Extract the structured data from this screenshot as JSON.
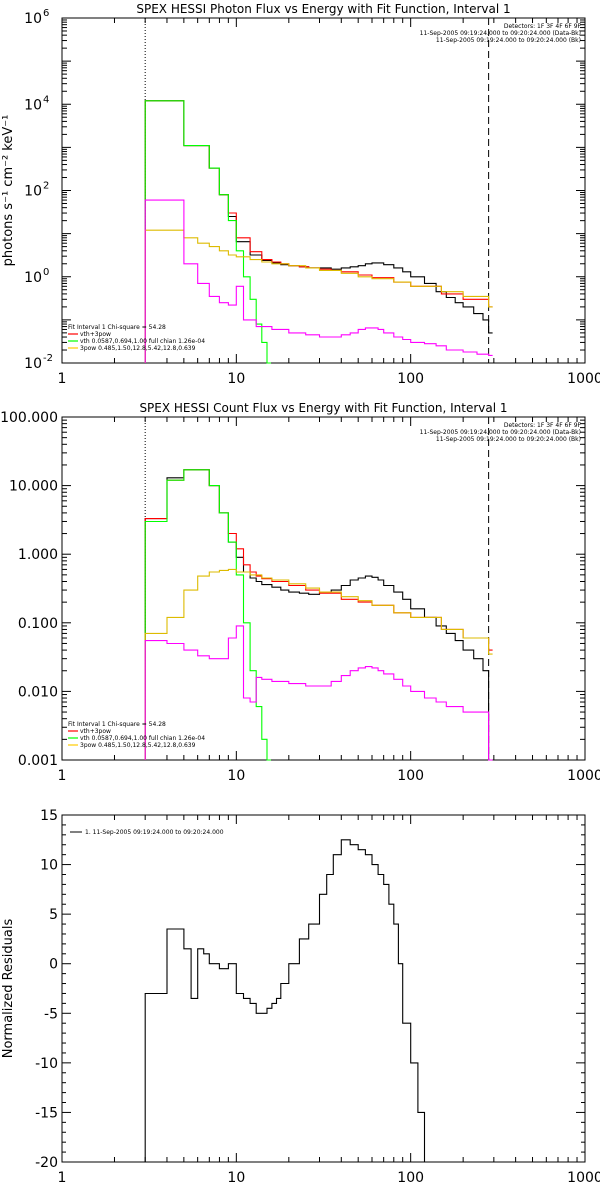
{
  "chart_data": [
    {
      "type": "line",
      "title": "SPEX HESSI Photon Flux vs Energy with Fit Function, Interval 1",
      "ylabel": "photons s⁻¹ cm⁻² keV⁻¹",
      "xlabel": "",
      "xscale": "log",
      "yscale": "log",
      "xlim": [
        1,
        1000
      ],
      "ylim": [
        0.01,
        1000000
      ],
      "x_ticks": [
        "1",
        "10",
        "100",
        "1000"
      ],
      "y_ticks": [
        {
          "value": 0.01,
          "base": "10",
          "exp": "-2"
        },
        {
          "value": 1,
          "base": "10",
          "exp": "0"
        },
        {
          "value": 100,
          "base": "10",
          "exp": "2"
        },
        {
          "value": 10000,
          "base": "10",
          "exp": "4"
        },
        {
          "value": 1000000,
          "base": "10",
          "exp": "6"
        }
      ],
      "vlines": [
        {
          "x": 3,
          "style": "dotted"
        },
        {
          "x": 280,
          "style": "dashed"
        }
      ],
      "legend_topright": [
        {
          "text": "Detectors: 1F 3F 4F 6F 9F",
          "color": "#000000"
        },
        {
          "text": "11-Sep-2005 09:19:24.000 to 09:20:24.000 (Data-Bk)",
          "color": "#000000"
        },
        {
          "text": "11-Sep-2005 09:19:24.000 to 09:20:24.000 (Bk)",
          "color": "#ff00ff"
        }
      ],
      "legend_bottomleft": [
        {
          "text": "Fit Interval 1   Chi-square = 54.28",
          "color": "#000000"
        },
        {
          "text": "vth+3pow",
          "color": "#ff0000"
        },
        {
          "text": "vth 0.0587,0.694,1.00  full chian 1.26e-04",
          "color": "#00ff00"
        },
        {
          "text": "3pow 0.485,1.50,12.8,5.42,12.8,0.639",
          "color": "#ffcc00"
        }
      ],
      "series": [
        {
          "name": "11-Sep-2005 09:19:24.000 to 09:20:24.000 (Data-Bk)",
          "color": "#000000",
          "x": [
            3,
            4,
            5,
            6,
            7,
            8,
            9,
            10,
            12,
            14,
            16,
            18,
            20,
            23,
            26,
            30,
            35,
            40,
            45,
            50,
            55,
            60,
            65,
            70,
            80,
            90,
            100,
            120,
            140,
            160,
            180,
            200,
            230,
            260,
            280
          ],
          "y": [
            12000,
            12000,
            1100,
            1100,
            330,
            80,
            25,
            6.5,
            3.2,
            2.4,
            2.1,
            1.9,
            1.8,
            1.7,
            1.6,
            1.6,
            1.5,
            1.6,
            1.7,
            1.8,
            2.0,
            2.1,
            2.1,
            1.9,
            1.6,
            1.3,
            1.0,
            0.7,
            0.45,
            0.33,
            0.25,
            0.2,
            0.14,
            0.1,
            0.05
          ]
        },
        {
          "name": "vth+3pow",
          "color": "#ff0000",
          "x": [
            3,
            4,
            5,
            6,
            7,
            8,
            9,
            10,
            12,
            14,
            16,
            18,
            20,
            23,
            26,
            30,
            35,
            40,
            50,
            60,
            80,
            100,
            150,
            200,
            280
          ],
          "y": [
            12000,
            12000,
            1100,
            1100,
            330,
            80,
            30,
            8,
            3.8,
            2.5,
            2.2,
            2.0,
            1.8,
            1.7,
            1.6,
            1.5,
            1.4,
            1.3,
            1.1,
            0.95,
            0.75,
            0.6,
            0.4,
            0.3,
            0.2
          ]
        },
        {
          "name": "vth",
          "color": "#00ff00",
          "x": [
            3,
            4,
            5,
            6,
            7,
            8,
            9,
            10,
            11,
            12,
            13,
            14,
            15
          ],
          "y": [
            12000,
            12000,
            1100,
            1100,
            330,
            80,
            20,
            4,
            1,
            0.3,
            0.08,
            0.03,
            0.01
          ]
        },
        {
          "name": "3pow",
          "color": "#ddbb00",
          "x": [
            3,
            4,
            5,
            6,
            7,
            8,
            9,
            10,
            12,
            14,
            16,
            20,
            25,
            30,
            40,
            50,
            60,
            80,
            100,
            150,
            200,
            280
          ],
          "y": [
            12,
            12,
            8,
            6,
            5,
            4,
            3.2,
            2.9,
            2.5,
            2.2,
            2.0,
            1.8,
            1.6,
            1.4,
            1.2,
            1.0,
            0.9,
            0.75,
            0.6,
            0.45,
            0.35,
            0.2
          ]
        },
        {
          "name": "11-Sep-2005 09:19:24.000 to 09:20:24.000 (Bk)",
          "color": "#ff00ff",
          "x": [
            3,
            4,
            5,
            6,
            7,
            8,
            9,
            10,
            11,
            12,
            13,
            14,
            16,
            20,
            25,
            30,
            35,
            40,
            45,
            50,
            55,
            60,
            65,
            70,
            80,
            90,
            100,
            120,
            140,
            160,
            200,
            240,
            280
          ],
          "y": [
            60,
            60,
            2,
            0.7,
            0.35,
            0.25,
            0.22,
            0.6,
            0.1,
            0.1,
            0.07,
            0.07,
            0.06,
            0.05,
            0.045,
            0.04,
            0.04,
            0.045,
            0.05,
            0.06,
            0.065,
            0.065,
            0.06,
            0.05,
            0.04,
            0.035,
            0.03,
            0.028,
            0.025,
            0.02,
            0.018,
            0.016,
            0.015
          ]
        }
      ]
    },
    {
      "type": "line",
      "title": "SPEX HESSI Count Flux vs Energy with Fit Function, Interval 1",
      "xscale": "log",
      "yscale": "log",
      "xlim": [
        1,
        1000
      ],
      "ylim": [
        0.001,
        100
      ],
      "x_ticks": [
        "1",
        "10",
        "100",
        "1000"
      ],
      "y_ticks": [
        {
          "value": 0.001,
          "label": "0.001"
        },
        {
          "value": 0.01,
          "label": "0.010"
        },
        {
          "value": 0.1,
          "label": "0.100"
        },
        {
          "value": 1,
          "label": "1.000"
        },
        {
          "value": 10,
          "label": "10.000"
        },
        {
          "value": 100,
          "label": "100.000"
        }
      ],
      "vlines": [
        {
          "x": 3,
          "style": "dotted"
        },
        {
          "x": 280,
          "style": "dashed"
        }
      ],
      "legend_topright": [
        {
          "text": "Detectors: 1F 3F 4F 6F 9F",
          "color": "#000000"
        },
        {
          "text": "11-Sep-2005 09:19:24.000 to 09:20:24.000 (Data-Bk)",
          "color": "#000000"
        },
        {
          "text": "11-Sep-2005 09:19:24.000 to 09:20:24.000 (Bk)",
          "color": "#ff00ff"
        }
      ],
      "legend_bottomleft": [
        {
          "text": "Fit Interval 1   Chi-square = 54.28",
          "color": "#000000"
        },
        {
          "text": "vth+3pow",
          "color": "#ff0000"
        },
        {
          "text": "vth 0.0587,0.694,1.00  full chian 1.26e-04",
          "color": "#00ff00"
        },
        {
          "text": "3pow 0.485,1.50,12.8,5.42,12.8,0.639",
          "color": "#ffcc00"
        }
      ],
      "series": [
        {
          "name": "11-Sep-2005 09:19:24.000 to 09:20:24.000 (Data-Bk)",
          "color": "#000000",
          "x": [
            3,
            4,
            5,
            6,
            7,
            8,
            9,
            10,
            11,
            12,
            13,
            14,
            16,
            18,
            20,
            23,
            26,
            30,
            35,
            40,
            45,
            50,
            55,
            60,
            65,
            70,
            80,
            90,
            100,
            120,
            140,
            160,
            180,
            200,
            230,
            260,
            280
          ],
          "y": [
            3.3,
            13,
            17,
            17,
            10,
            4,
            1.5,
            0.9,
            0.55,
            0.45,
            0.4,
            0.36,
            0.33,
            0.3,
            0.28,
            0.27,
            0.26,
            0.28,
            0.3,
            0.35,
            0.42,
            0.45,
            0.48,
            0.46,
            0.42,
            0.35,
            0.28,
            0.22,
            0.16,
            0.12,
            0.09,
            0.07,
            0.055,
            0.04,
            0.03,
            0.02,
            0.001
          ]
        },
        {
          "name": "vth+3pow",
          "color": "#ff0000",
          "x": [
            3,
            4,
            5,
            6,
            7,
            8,
            9,
            10,
            11,
            12,
            13,
            14,
            16,
            20,
            25,
            30,
            40,
            50,
            60,
            80,
            100,
            150,
            200,
            280
          ],
          "y": [
            3.3,
            12,
            17,
            17,
            10,
            4,
            2,
            1.2,
            0.7,
            0.55,
            0.48,
            0.44,
            0.4,
            0.35,
            0.3,
            0.27,
            0.22,
            0.2,
            0.18,
            0.14,
            0.12,
            0.08,
            0.06,
            0.04
          ]
        },
        {
          "name": "vth",
          "color": "#00ff00",
          "x": [
            3,
            4,
            5,
            6,
            7,
            8,
            9,
            10,
            11,
            12,
            13,
            14,
            15
          ],
          "y": [
            3,
            12,
            17,
            17,
            10,
            4,
            1.5,
            0.5,
            0.1,
            0.02,
            0.006,
            0.002,
            0.001
          ]
        },
        {
          "name": "3pow",
          "color": "#ddbb00",
          "x": [
            3,
            4,
            5,
            6,
            7,
            8,
            9,
            10,
            12,
            14,
            16,
            20,
            25,
            30,
            40,
            50,
            60,
            80,
            100,
            150,
            200,
            280
          ],
          "y": [
            0.07,
            0.12,
            0.3,
            0.48,
            0.55,
            0.58,
            0.6,
            0.55,
            0.5,
            0.45,
            0.42,
            0.37,
            0.32,
            0.28,
            0.24,
            0.21,
            0.18,
            0.14,
            0.12,
            0.08,
            0.06,
            0.035
          ]
        },
        {
          "name": "11-Sep-2005 09:19:24.000 to 09:20:24.000 (Bk)",
          "color": "#ff00ff",
          "x": [
            3,
            4,
            5,
            6,
            7,
            8,
            9,
            10,
            11,
            12,
            13,
            14,
            16,
            20,
            25,
            30,
            35,
            40,
            45,
            50,
            55,
            60,
            65,
            70,
            80,
            90,
            100,
            120,
            140,
            160,
            200,
            240,
            280
          ],
          "y": [
            0.055,
            0.05,
            0.04,
            0.033,
            0.03,
            0.03,
            0.06,
            0.09,
            0.008,
            0.007,
            0.016,
            0.015,
            0.014,
            0.013,
            0.012,
            0.012,
            0.014,
            0.017,
            0.02,
            0.022,
            0.023,
            0.022,
            0.02,
            0.018,
            0.015,
            0.012,
            0.01,
            0.008,
            0.007,
            0.006,
            0.005,
            0.005,
            0.001
          ]
        }
      ]
    },
    {
      "type": "line",
      "xscale": "log",
      "xlim": [
        1,
        1000
      ],
      "ylim": [
        -20,
        15
      ],
      "ylabel": "Normalized Residuals",
      "x_ticks": [
        "1",
        "10",
        "100",
        "1000"
      ],
      "y_ticks": [
        "15",
        "10",
        "5",
        "0",
        "-5",
        "-10",
        "-15",
        "-20"
      ],
      "legend_topleft": [
        {
          "text": "1. 11-Sep-2005 09:19:24.000 to 09:20:24.000",
          "color": "#000000"
        }
      ],
      "series": [
        {
          "name": "1. 11-Sep-2005 09:19:24.000 to 09:20:24.000",
          "color": "#000000",
          "x": [
            3,
            4,
            5,
            5.5,
            6,
            6.5,
            7,
            8,
            9,
            10,
            11,
            12,
            13,
            14,
            15,
            16,
            17,
            18,
            20,
            23,
            26,
            30,
            33,
            36,
            40,
            45,
            50,
            55,
            60,
            65,
            70,
            75,
            80,
            85,
            90,
            100,
            110,
            120,
            130,
            140,
            160,
            180,
            200,
            230,
            260,
            280
          ],
          "y": [
            -3,
            3.5,
            1.5,
            -3.5,
            1.5,
            1,
            0,
            -0.5,
            0,
            -3,
            -3.5,
            -4,
            -5,
            -5,
            -4.5,
            -4,
            -3.5,
            -2,
            0,
            2.5,
            4,
            7,
            9,
            11,
            12.5,
            12,
            11.5,
            11,
            10,
            9,
            8,
            6,
            4,
            0,
            -6,
            -10,
            -15,
            -20,
            -20,
            -20,
            -20,
            -20,
            -20,
            -20,
            -20,
            -20
          ]
        }
      ]
    }
  ]
}
